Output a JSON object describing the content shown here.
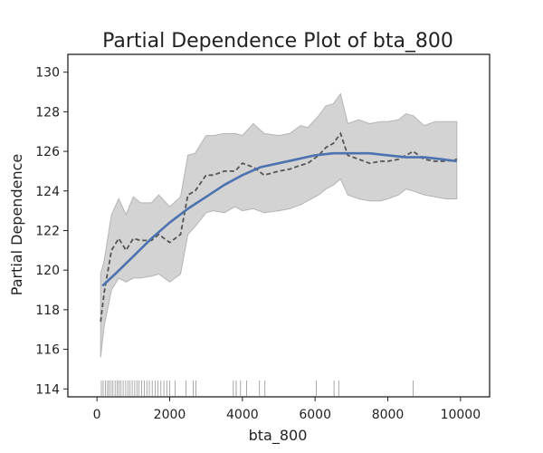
{
  "chart_data": {
    "type": "line",
    "title": "Partial Dependence Plot of bta_800",
    "xlabel": "bta_800",
    "ylabel": "Partial Dependence",
    "xlim": [
      -800,
      10800
    ],
    "ylim": [
      113.6,
      130.9
    ],
    "xticks": [
      0,
      2000,
      4000,
      6000,
      8000,
      10000
    ],
    "yticks": [
      114,
      116,
      118,
      120,
      122,
      124,
      126,
      128,
      130
    ],
    "grid": false,
    "legend": "none",
    "colors": {
      "band": "#d3d3d3",
      "band_edge": "#b4b4b4",
      "dashed": "#555555",
      "fit": "#4c72b0",
      "rug": "#666666"
    },
    "series": [
      {
        "kind": "band",
        "x": [
          100,
          200,
          400,
          600,
          800,
          1000,
          1200,
          1500,
          1700,
          2000,
          2300,
          2500,
          2700,
          3000,
          3200,
          3500,
          3800,
          4000,
          4300,
          4600,
          5000,
          5300,
          5600,
          5800,
          6100,
          6300,
          6500,
          6700,
          6900,
          7200,
          7500,
          7800,
          8000,
          8300,
          8500,
          8700,
          9000,
          9300,
          9600,
          9900
        ],
        "upper": [
          119.8,
          120.5,
          122.8,
          123.6,
          122.8,
          123.7,
          123.4,
          123.4,
          123.8,
          123.2,
          123.7,
          125.8,
          125.9,
          126.8,
          126.8,
          126.9,
          126.9,
          126.8,
          127.4,
          126.9,
          126.8,
          126.9,
          127.3,
          127.2,
          127.8,
          128.3,
          128.4,
          128.9,
          127.4,
          127.6,
          127.4,
          127.5,
          127.5,
          127.6,
          127.9,
          127.8,
          127.3,
          127.5,
          127.5,
          127.5
        ],
        "lower": [
          115.6,
          117.2,
          119.0,
          119.6,
          119.4,
          119.6,
          119.6,
          119.7,
          119.8,
          119.4,
          119.8,
          121.8,
          122.2,
          122.9,
          123.0,
          122.9,
          123.2,
          123.0,
          123.1,
          122.9,
          123.0,
          123.1,
          123.3,
          123.5,
          123.8,
          124.1,
          124.3,
          124.6,
          123.8,
          123.6,
          123.5,
          123.5,
          123.6,
          123.8,
          124.1,
          124.0,
          123.8,
          123.7,
          123.6,
          123.6
        ]
      },
      {
        "kind": "dashed",
        "x": [
          100,
          200,
          400,
          600,
          800,
          1000,
          1200,
          1500,
          1700,
          2000,
          2300,
          2500,
          2700,
          3000,
          3200,
          3500,
          3800,
          4000,
          4300,
          4600,
          5000,
          5300,
          5600,
          5800,
          6100,
          6300,
          6500,
          6700,
          6900,
          7200,
          7500,
          7800,
          8000,
          8300,
          8500,
          8700,
          9000,
          9300,
          9600,
          9900
        ],
        "values": [
          117.4,
          118.9,
          121.0,
          121.6,
          121.0,
          121.6,
          121.5,
          121.5,
          121.8,
          121.4,
          121.8,
          123.8,
          124.0,
          124.8,
          124.8,
          125.0,
          125.0,
          125.4,
          125.2,
          124.8,
          125.0,
          125.1,
          125.3,
          125.4,
          125.8,
          126.2,
          126.4,
          126.9,
          125.8,
          125.6,
          125.4,
          125.5,
          125.5,
          125.6,
          125.8,
          126.0,
          125.6,
          125.5,
          125.5,
          125.6
        ]
      },
      {
        "kind": "fit",
        "x": [
          150,
          500,
          1000,
          1500,
          2000,
          2500,
          3000,
          3500,
          4000,
          4500,
          5000,
          5500,
          6000,
          6500,
          7000,
          7500,
          8000,
          8500,
          9000,
          9500,
          9900
        ],
        "values": [
          119.2,
          119.8,
          120.7,
          121.6,
          122.4,
          123.1,
          123.7,
          124.3,
          124.8,
          125.2,
          125.4,
          125.6,
          125.8,
          125.9,
          125.9,
          125.9,
          125.8,
          125.7,
          125.7,
          125.6,
          125.5
        ]
      }
    ],
    "rug": [
      120,
      170,
      230,
      290,
      330,
      390,
      440,
      500,
      560,
      610,
      660,
      720,
      790,
      850,
      910,
      970,
      1040,
      1100,
      1160,
      1230,
      1300,
      1370,
      1440,
      1520,
      1600,
      1680,
      1760,
      1840,
      1920,
      2000,
      2150,
      2450,
      2650,
      2720,
      3750,
      3830,
      3950,
      4120,
      4470,
      4620,
      6030,
      6520,
      6650,
      8700
    ]
  }
}
